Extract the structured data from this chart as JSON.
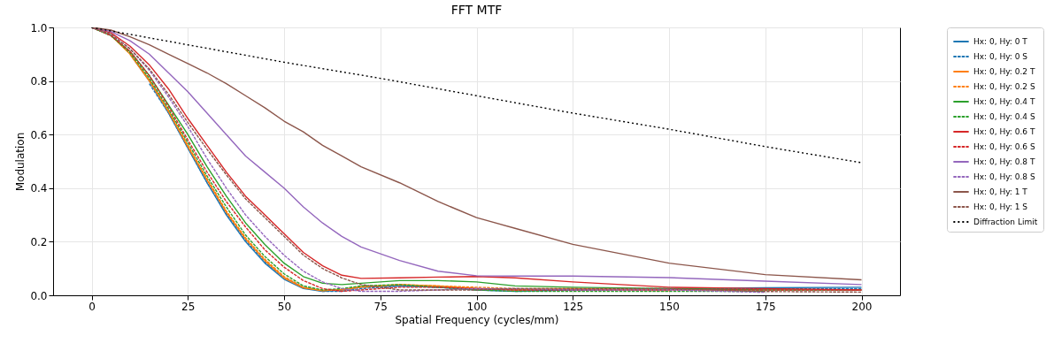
{
  "chart_data": {
    "type": "line",
    "title": "FFT MTF",
    "xlabel": "Spatial Frequency (cycles/mm)",
    "ylabel": "Modulation",
    "x": [
      0,
      5,
      10,
      15,
      20,
      25,
      30,
      35,
      40,
      45,
      50,
      55,
      60,
      65,
      70,
      80,
      90,
      100,
      110,
      125,
      150,
      175,
      200
    ],
    "xlim": [
      -10,
      210
    ],
    "xticks": [
      0,
      25,
      50,
      75,
      100,
      125,
      150,
      175,
      200
    ],
    "ylim": [
      0,
      1
    ],
    "yticks": [
      {
        "value": 0,
        "label": "0.0"
      },
      0.2,
      0.4,
      0.6,
      0.8,
      {
        "value": 1,
        "label": "1.0"
      }
    ],
    "grid": true,
    "legend": "right",
    "series": [
      {
        "name": "Hx: 0, Hy: 0 T",
        "color": "#1f77b4",
        "line_style": "solid",
        "values": [
          null,
          null,
          0.9,
          0.8,
          0.68,
          0.55,
          0.42,
          0.3,
          0.2,
          0.12,
          0.06,
          0.025,
          0.015,
          0.02,
          0.03,
          0.035,
          0.03,
          0.02,
          0.015,
          0.02,
          0.025,
          0.028,
          0.03
        ]
      },
      {
        "name": "Hx: 0, Hy: 0 S",
        "color": "#1f77b4",
        "line_style": "dashed",
        "values": [
          null,
          null,
          null,
          0.79,
          0.68,
          0.55,
          0.42,
          0.305,
          0.205,
          0.125,
          0.065,
          0.03,
          0.015,
          0.015,
          0.025,
          0.035,
          0.03,
          0.025,
          0.02,
          0.02,
          0.022,
          0.024,
          0.025
        ]
      },
      {
        "name": "Hx: 0, Hy: 0.2 T",
        "color": "#ff7f0e",
        "line_style": "solid",
        "values": [
          null,
          0.97,
          0.9,
          0.8,
          0.685,
          0.555,
          0.43,
          0.31,
          0.21,
          0.13,
          0.065,
          0.028,
          0.017,
          0.022,
          0.032,
          0.04,
          0.035,
          0.025,
          0.02,
          0.025,
          0.02,
          null,
          null
        ]
      },
      {
        "name": "Hx: 0, Hy: 0.2 S",
        "color": "#ff7f0e",
        "line_style": "dashed",
        "values": [
          null,
          null,
          0.9,
          0.805,
          0.69,
          0.56,
          0.435,
          0.315,
          0.215,
          0.135,
          0.07,
          0.03,
          0.018,
          0.02,
          0.03,
          0.04,
          0.035,
          0.03,
          0.025,
          0.025,
          0.016,
          null,
          null
        ]
      },
      {
        "name": "Hx: 0, Hy: 0.4 T",
        "color": "#2ca02c",
        "line_style": "solid",
        "values": [
          1,
          0.97,
          0.91,
          0.82,
          0.71,
          0.6,
          0.48,
          0.37,
          0.27,
          0.19,
          0.12,
          0.07,
          0.045,
          0.04,
          0.045,
          0.055,
          0.055,
          0.05,
          0.035,
          0.03,
          0.025,
          0.02,
          0.02
        ]
      },
      {
        "name": "Hx: 0, Hy: 0.4 S",
        "color": "#2ca02c",
        "line_style": "dashed",
        "values": [
          1,
          0.97,
          0.905,
          0.81,
          0.695,
          0.57,
          0.445,
          0.33,
          0.225,
          0.145,
          0.08,
          0.035,
          0.02,
          0.025,
          0.035,
          0.04,
          0.03,
          0.02,
          0.015,
          0.015,
          0.015,
          0.015,
          null
        ]
      },
      {
        "name": "Hx: 0, Hy: 0.6 T",
        "color": "#d62728",
        "line_style": "solid",
        "values": [
          1,
          0.98,
          0.93,
          0.86,
          0.77,
          0.66,
          0.56,
          0.46,
          0.37,
          0.3,
          0.23,
          0.16,
          0.11,
          0.075,
          0.063,
          0.065,
          0.068,
          0.07,
          0.065,
          0.05,
          0.03,
          0.025,
          0.02
        ]
      },
      {
        "name": "Hx: 0, Hy: 0.6 S",
        "color": "#d62728",
        "line_style": "dashed",
        "values": [
          1,
          0.97,
          0.91,
          0.82,
          0.705,
          0.58,
          0.46,
          0.35,
          0.255,
          0.17,
          0.105,
          0.055,
          0.025,
          0.015,
          0.02,
          0.03,
          0.03,
          0.025,
          0.02,
          0.02,
          0.02,
          0.02,
          0.02
        ]
      },
      {
        "name": "Hx: 0, Hy: 0.8 T",
        "color": "#9467bd",
        "line_style": "solid",
        "values": [
          1,
          0.985,
          0.95,
          0.9,
          0.83,
          0.76,
          0.68,
          0.6,
          0.52,
          0.46,
          0.4,
          0.33,
          0.27,
          0.22,
          0.18,
          0.13,
          0.09,
          0.073,
          0.072,
          0.072,
          0.066,
          0.053,
          0.04
        ]
      },
      {
        "name": "Hx: 0, Hy: 0.8 S",
        "color": "#9467bd",
        "line_style": "dashed",
        "values": [
          1,
          0.975,
          0.92,
          0.84,
          0.74,
          0.63,
          0.51,
          0.4,
          0.3,
          0.22,
          0.15,
          0.09,
          0.05,
          0.025,
          0.015,
          0.015,
          0.02,
          0.025,
          0.025,
          0.02,
          0.02,
          0.011,
          null
        ]
      },
      {
        "name": "Hx: 0, Hy: 1 T",
        "color": "#8c564b",
        "line_style": "solid",
        "values": [
          1,
          0.99,
          0.965,
          0.935,
          0.9,
          0.865,
          0.83,
          0.79,
          0.745,
          0.7,
          0.65,
          0.61,
          0.56,
          0.52,
          0.48,
          0.42,
          0.35,
          0.29,
          0.25,
          0.19,
          0.12,
          0.077,
          0.058
        ]
      },
      {
        "name": "Hx: 0, Hy: 1 S",
        "color": "#8c564b",
        "line_style": "dashed",
        "values": [
          1,
          0.975,
          0.92,
          0.845,
          0.75,
          0.645,
          0.545,
          0.45,
          0.36,
          0.29,
          0.22,
          0.15,
          0.1,
          0.065,
          0.04,
          0.02,
          0.02,
          0.02,
          0.025,
          0.025,
          0.025,
          0.014,
          0.012
        ]
      },
      {
        "name": "Diffraction Limit",
        "color": "#000000",
        "line_style": "dotted",
        "x": [
          0,
          25,
          50,
          75,
          100,
          125,
          150,
          175,
          200
        ],
        "values": [
          1,
          0.935,
          0.87,
          0.81,
          0.745,
          0.68,
          0.62,
          0.555,
          0.495
        ]
      }
    ]
  }
}
